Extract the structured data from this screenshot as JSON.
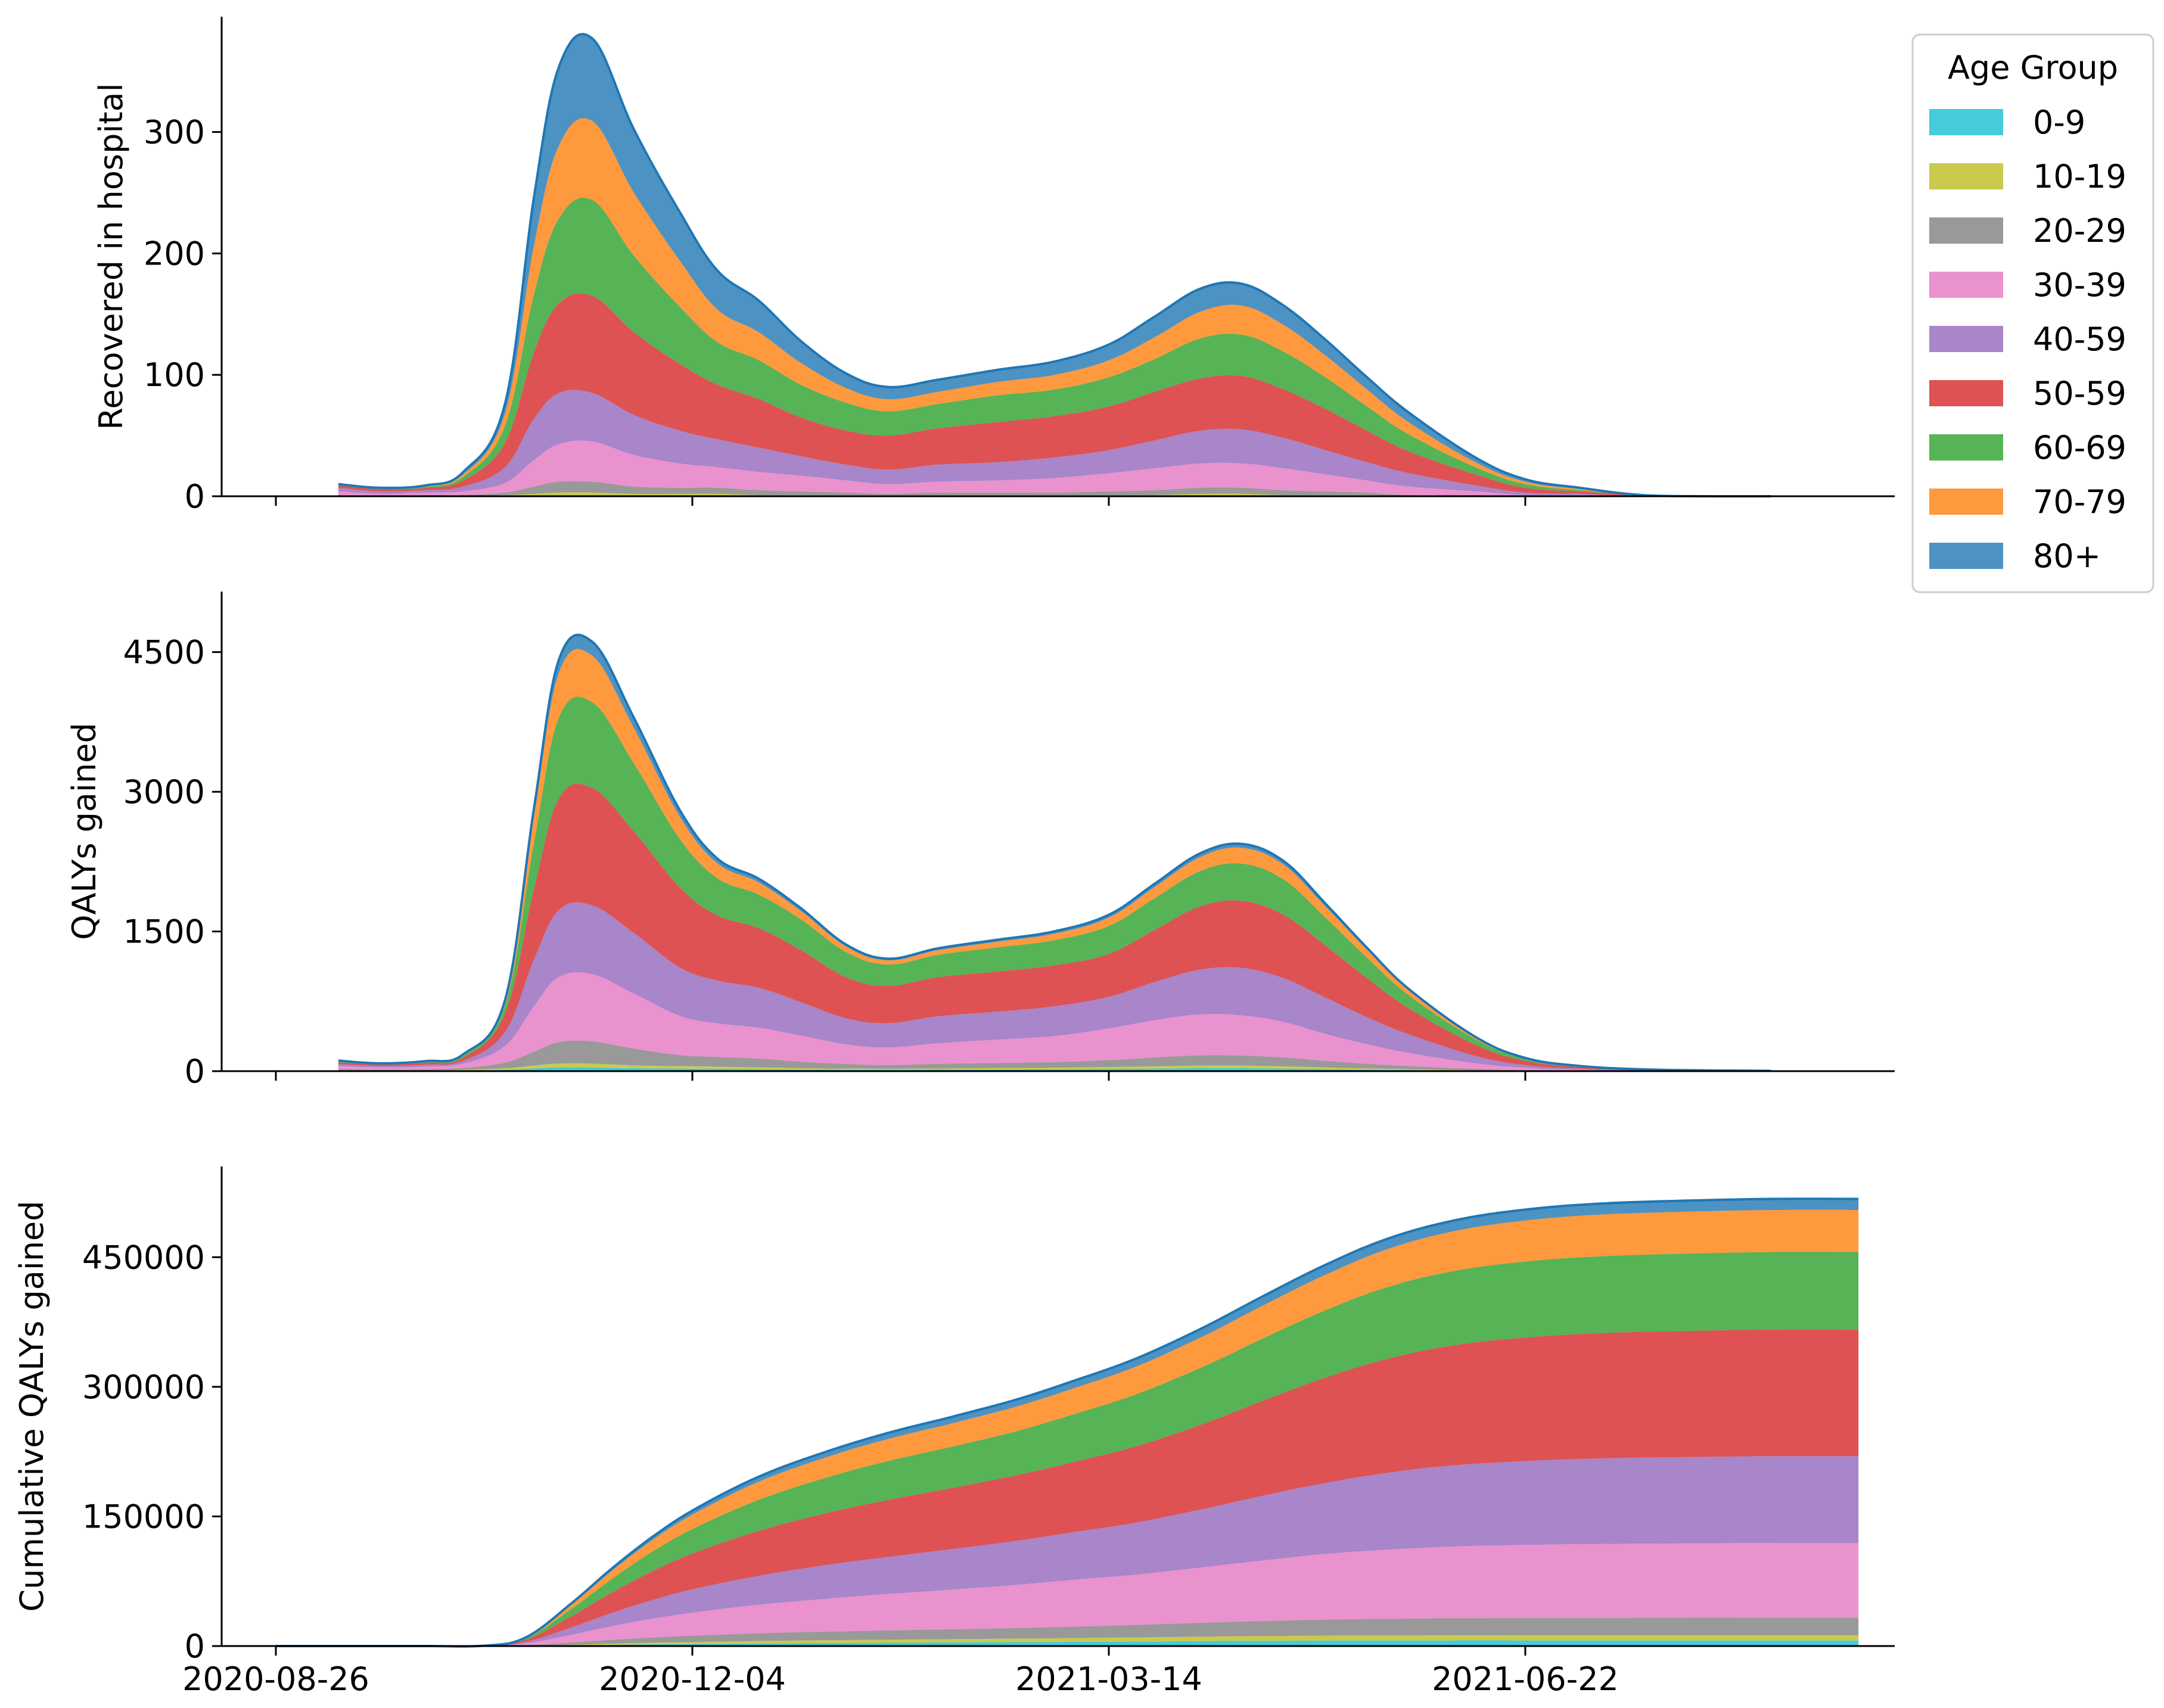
{
  "chart_data": [
    {
      "type": "area",
      "stacked": true,
      "ylabel": "Recovered in hospital",
      "ylim": [
        0,
        395
      ],
      "yticks": [
        0,
        100,
        200,
        300
      ],
      "x_dates": [
        "2020-09-10",
        "2020-09-20",
        "2020-10-01",
        "2020-10-10",
        "2020-10-20",
        "2020-10-27",
        "2020-11-02",
        "2020-11-10",
        "2020-11-20",
        "2020-12-01",
        "2020-12-10",
        "2020-12-20",
        "2020-12-30",
        "2021-01-10",
        "2021-01-20",
        "2021-02-01",
        "2021-02-15",
        "2021-03-01",
        "2021-03-14",
        "2021-03-25",
        "2021-04-05",
        "2021-04-15",
        "2021-04-25",
        "2021-05-05",
        "2021-05-15",
        "2021-05-25",
        "2021-06-10",
        "2021-06-22",
        "2021-07-05",
        "2021-07-20",
        "2021-08-05",
        "2021-08-20"
      ],
      "series": [
        {
          "name": "0-9",
          "values": [
            0,
            0,
            0,
            0,
            0,
            0,
            0,
            0,
            0,
            0,
            0,
            0,
            0,
            0,
            0,
            0,
            0,
            0,
            0,
            0,
            0,
            0,
            0,
            0,
            0,
            0,
            0,
            0,
            0,
            0,
            0,
            0
          ]
        },
        {
          "name": "10-19",
          "values": [
            0,
            0,
            0,
            0,
            1,
            2,
            3,
            3,
            2,
            2,
            2,
            1,
            1,
            1,
            1,
            1,
            1,
            1,
            1,
            1,
            2,
            2,
            1,
            1,
            1,
            0,
            0,
            0,
            0,
            0,
            0,
            0
          ]
        },
        {
          "name": "20-29",
          "values": [
            1,
            0,
            1,
            1,
            2,
            6,
            9,
            9,
            6,
            5,
            5,
            4,
            3,
            2,
            1,
            2,
            2,
            2,
            3,
            4,
            5,
            5,
            4,
            3,
            2,
            1,
            1,
            0,
            0,
            0,
            0,
            0
          ]
        },
        {
          "name": "30-39",
          "values": [
            3,
            2,
            2,
            3,
            8,
            22,
            31,
            33,
            26,
            20,
            17,
            15,
            13,
            10,
            8,
            9,
            10,
            12,
            15,
            18,
            20,
            20,
            18,
            14,
            10,
            7,
            3,
            1,
            1,
            0,
            0,
            0
          ]
        },
        {
          "name": "40-59",
          "values": [
            3,
            2,
            2,
            4,
            13,
            34,
            42,
            40,
            33,
            27,
            23,
            20,
            16,
            13,
            12,
            14,
            15,
            17,
            19,
            23,
            27,
            28,
            25,
            20,
            15,
            11,
            5,
            2,
            1,
            0,
            0,
            0
          ]
        },
        {
          "name": "50-59",
          "values": [
            2,
            2,
            2,
            5,
            20,
            55,
            74,
            80,
            68,
            55,
            45,
            40,
            32,
            28,
            28,
            30,
            33,
            34,
            36,
            40,
            43,
            44,
            40,
            34,
            26,
            18,
            9,
            4,
            2,
            1,
            0,
            0
          ]
        },
        {
          "name": "60-69",
          "values": [
            1,
            1,
            1,
            3,
            14,
            48,
            70,
            79,
            63,
            47,
            35,
            32,
            27,
            23,
            20,
            20,
            22,
            22,
            24,
            27,
            33,
            34,
            31,
            26,
            20,
            14,
            6,
            3,
            1,
            0,
            0,
            0
          ]
        },
        {
          "name": "70-79",
          "values": [
            0,
            0,
            1,
            2,
            10,
            40,
            60,
            65,
            52,
            38,
            27,
            23,
            18,
            12,
            10,
            10,
            11,
            12,
            14,
            18,
            22,
            24,
            22,
            18,
            14,
            10,
            4,
            2,
            1,
            0,
            0,
            0
          ]
        },
        {
          "name": "80+",
          "values": [
            0,
            0,
            0,
            2,
            8,
            40,
            65,
            68,
            52,
            40,
            32,
            26,
            18,
            12,
            10,
            10,
            10,
            11,
            13,
            17,
            19,
            18,
            16,
            13,
            10,
            8,
            4,
            2,
            1,
            0,
            0,
            0
          ]
        }
      ]
    },
    {
      "type": "area",
      "stacked": true,
      "ylabel": "QALYs gained",
      "ylim": [
        0,
        5150
      ],
      "yticks": [
        0,
        1500,
        3000,
        4500
      ],
      "x_dates": [
        "2020-09-10",
        "2020-09-20",
        "2020-10-01",
        "2020-10-10",
        "2020-10-20",
        "2020-10-27",
        "2020-11-02",
        "2020-11-10",
        "2020-11-20",
        "2020-12-01",
        "2020-12-10",
        "2020-12-20",
        "2020-12-30",
        "2021-01-10",
        "2021-01-20",
        "2021-02-01",
        "2021-02-15",
        "2021-03-01",
        "2021-03-14",
        "2021-03-25",
        "2021-04-05",
        "2021-04-15",
        "2021-04-25",
        "2021-05-05",
        "2021-05-15",
        "2021-05-25",
        "2021-06-10",
        "2021-06-22",
        "2021-07-05",
        "2021-07-20",
        "2021-08-05",
        "2021-08-20"
      ],
      "series": [
        {
          "name": "0-9",
          "values": [
            5,
            3,
            4,
            8,
            15,
            30,
            42,
            40,
            32,
            28,
            26,
            22,
            18,
            15,
            14,
            16,
            18,
            20,
            24,
            28,
            32,
            32,
            28,
            22,
            16,
            12,
            5,
            2,
            1,
            0,
            0,
            0
          ]
        },
        {
          "name": "10-19",
          "values": [
            5,
            3,
            4,
            8,
            15,
            30,
            40,
            40,
            30,
            25,
            22,
            18,
            14,
            12,
            11,
            13,
            15,
            17,
            20,
            24,
            28,
            28,
            24,
            18,
            13,
            9,
            4,
            2,
            1,
            0,
            0,
            0
          ]
        },
        {
          "name": "20-29",
          "values": [
            15,
            10,
            12,
            20,
            60,
            150,
            230,
            240,
            180,
            120,
            105,
            95,
            70,
            50,
            40,
            50,
            55,
            60,
            75,
            95,
            110,
            108,
            95,
            70,
            50,
            35,
            15,
            6,
            2,
            1,
            0,
            0
          ]
        },
        {
          "name": "30-39",
          "values": [
            30,
            25,
            30,
            45,
            180,
            490,
            700,
            720,
            590,
            420,
            360,
            330,
            280,
            210,
            190,
            220,
            250,
            280,
            340,
            400,
            440,
            430,
            380,
            290,
            210,
            140,
            60,
            25,
            10,
            4,
            2,
            1
          ]
        },
        {
          "name": "40-59",
          "values": [
            20,
            15,
            20,
            30,
            150,
            500,
            720,
            740,
            650,
            520,
            460,
            430,
            360,
            280,
            260,
            290,
            300,
            320,
            340,
            410,
            480,
            510,
            470,
            390,
            290,
            200,
            80,
            30,
            12,
            5,
            2,
            1
          ]
        },
        {
          "name": "50-59",
          "values": [
            20,
            15,
            20,
            35,
            200,
            760,
            1200,
            1260,
            1090,
            860,
            700,
            640,
            560,
            440,
            400,
            420,
            430,
            440,
            460,
            560,
            680,
            720,
            680,
            560,
            420,
            280,
            120,
            45,
            18,
            6,
            3,
            1
          ]
        },
        {
          "name": "60-69",
          "values": [
            10,
            8,
            10,
            20,
            80,
            500,
            870,
            920,
            730,
            520,
            400,
            360,
            330,
            270,
            230,
            240,
            260,
            270,
            300,
            340,
            380,
            400,
            380,
            300,
            220,
            140,
            60,
            22,
            8,
            3,
            1,
            0
          ]
        },
        {
          "name": "70-79",
          "values": [
            5,
            3,
            5,
            10,
            40,
            280,
            480,
            500,
            380,
            240,
            160,
            130,
            90,
            60,
            45,
            50,
            60,
            70,
            90,
            120,
            150,
            170,
            160,
            120,
            85,
            55,
            20,
            8,
            3,
            1,
            0,
            0
          ]
        },
        {
          "name": "80+",
          "values": [
            3,
            2,
            3,
            5,
            20,
            90,
            140,
            150,
            110,
            70,
            50,
            40,
            30,
            20,
            18,
            20,
            22,
            25,
            30,
            35,
            40,
            42,
            38,
            30,
            20,
            12,
            5,
            2,
            1,
            0,
            0,
            0
          ]
        }
      ]
    },
    {
      "type": "area",
      "stacked": true,
      "ylabel": "Cumulative QALYs gained",
      "xlabel": "",
      "ylim": [
        0,
        555000
      ],
      "yticks": [
        0,
        150000,
        300000,
        450000
      ],
      "xticks": [
        "2020-08-26",
        "2020-12-04",
        "2021-03-14",
        "2021-06-22"
      ],
      "x_dates": [
        "2020-08-26",
        "2020-09-15",
        "2020-10-01",
        "2020-10-15",
        "2020-10-25",
        "2020-11-05",
        "2020-11-15",
        "2020-11-25",
        "2020-12-05",
        "2020-12-20",
        "2021-01-05",
        "2021-01-20",
        "2021-02-05",
        "2021-02-20",
        "2021-03-05",
        "2021-03-20",
        "2021-04-05",
        "2021-04-20",
        "2021-05-05",
        "2021-05-20",
        "2021-06-05",
        "2021-06-22",
        "2021-07-10",
        "2021-07-31",
        "2021-08-20",
        "2021-09-10"
      ],
      "series": [
        {
          "name": "0-9",
          "values": [
            0,
            0,
            0,
            0,
            200,
            800,
            1400,
            2000,
            2400,
            3000,
            3500,
            3800,
            4200,
            4500,
            4800,
            5200,
            5700,
            6000,
            6300,
            6400,
            6500,
            6500,
            6500,
            6500,
            6500,
            6500
          ]
        },
        {
          "name": "10-19",
          "values": [
            0,
            0,
            0,
            0,
            200,
            800,
            1400,
            1900,
            2300,
            2800,
            3200,
            3500,
            3800,
            4100,
            4400,
            4800,
            5200,
            5500,
            5800,
            5900,
            6000,
            6000,
            6000,
            6000,
            6000,
            6000
          ]
        },
        {
          "name": "20-29",
          "values": [
            0,
            0,
            0,
            0,
            600,
            2500,
            4500,
            6200,
            7500,
            9000,
            10000,
            10800,
            11500,
            12300,
            13200,
            14400,
            16000,
            17500,
            18500,
            19200,
            19700,
            20000,
            20100,
            20200,
            20200,
            20200
          ]
        },
        {
          "name": "30-39",
          "values": [
            0,
            0,
            0,
            100,
            2000,
            9000,
            16000,
            22000,
            27000,
            33000,
            38000,
            42000,
            46000,
            50000,
            54000,
            58000,
            64000,
            70000,
            76000,
            80000,
            83000,
            84500,
            85500,
            86000,
            86500,
            86500
          ]
        },
        {
          "name": "40-59",
          "values": [
            0,
            0,
            0,
            100,
            1800,
            8500,
            15500,
            22000,
            27500,
            33500,
            39000,
            43000,
            47000,
            51000,
            55000,
            60000,
            67000,
            75000,
            82000,
            89000,
            94000,
            97000,
            99000,
            100000,
            100500,
            100500
          ]
        },
        {
          "name": "50-59",
          "values": [
            0,
            0,
            0,
            100,
            2500,
            13000,
            24000,
            34000,
            42000,
            52000,
            60000,
            66000,
            71000,
            76000,
            81000,
            88000,
            98000,
            110000,
            122000,
            132000,
            139000,
            143000,
            145000,
            146000,
            146500,
            146500
          ]
        },
        {
          "name": "60-69",
          "values": [
            0,
            0,
            0,
            50,
            1500,
            8500,
            16000,
            23000,
            29000,
            36000,
            41000,
            45000,
            48000,
            51000,
            55000,
            60000,
            66000,
            72000,
            78000,
            83000,
            86000,
            88000,
            89000,
            89500,
            89800,
            89800
          ]
        },
        {
          "name": "70-79",
          "values": [
            0,
            0,
            0,
            20,
            800,
            5000,
            9500,
            13500,
            17000,
            21000,
            23500,
            25500,
            27000,
            28500,
            30000,
            32000,
            35000,
            38000,
            41000,
            44000,
            46000,
            47500,
            48200,
            48500,
            48600,
            48600
          ]
        },
        {
          "name": "80+",
          "values": [
            0,
            0,
            0,
            10,
            300,
            1500,
            2800,
            3800,
            4800,
            5800,
            6500,
            7100,
            7600,
            8100,
            8600,
            9200,
            10000,
            10800,
            11500,
            12000,
            12400,
            12600,
            12700,
            12800,
            12800,
            12800
          ]
        }
      ]
    }
  ],
  "legend": {
    "title": "Age Group",
    "placement": "upper right, outside",
    "items": [
      {
        "label": "0-9",
        "color": "#17becf"
      },
      {
        "label": "10-19",
        "color": "#bcbd22"
      },
      {
        "label": "20-29",
        "color": "#7f7f7f"
      },
      {
        "label": "30-39",
        "color": "#e377c2"
      },
      {
        "label": "40-59",
        "color": "#9467bd"
      },
      {
        "label": "50-59",
        "color": "#d62728"
      },
      {
        "label": "60-69",
        "color": "#2ca02c"
      },
      {
        "label": "70-79",
        "color": "#ff7f0e"
      },
      {
        "label": "80+",
        "color": "#1f77b4"
      }
    ]
  },
  "style": {
    "area_alpha": 0.8,
    "top_outline_color": "#1f77b4"
  }
}
